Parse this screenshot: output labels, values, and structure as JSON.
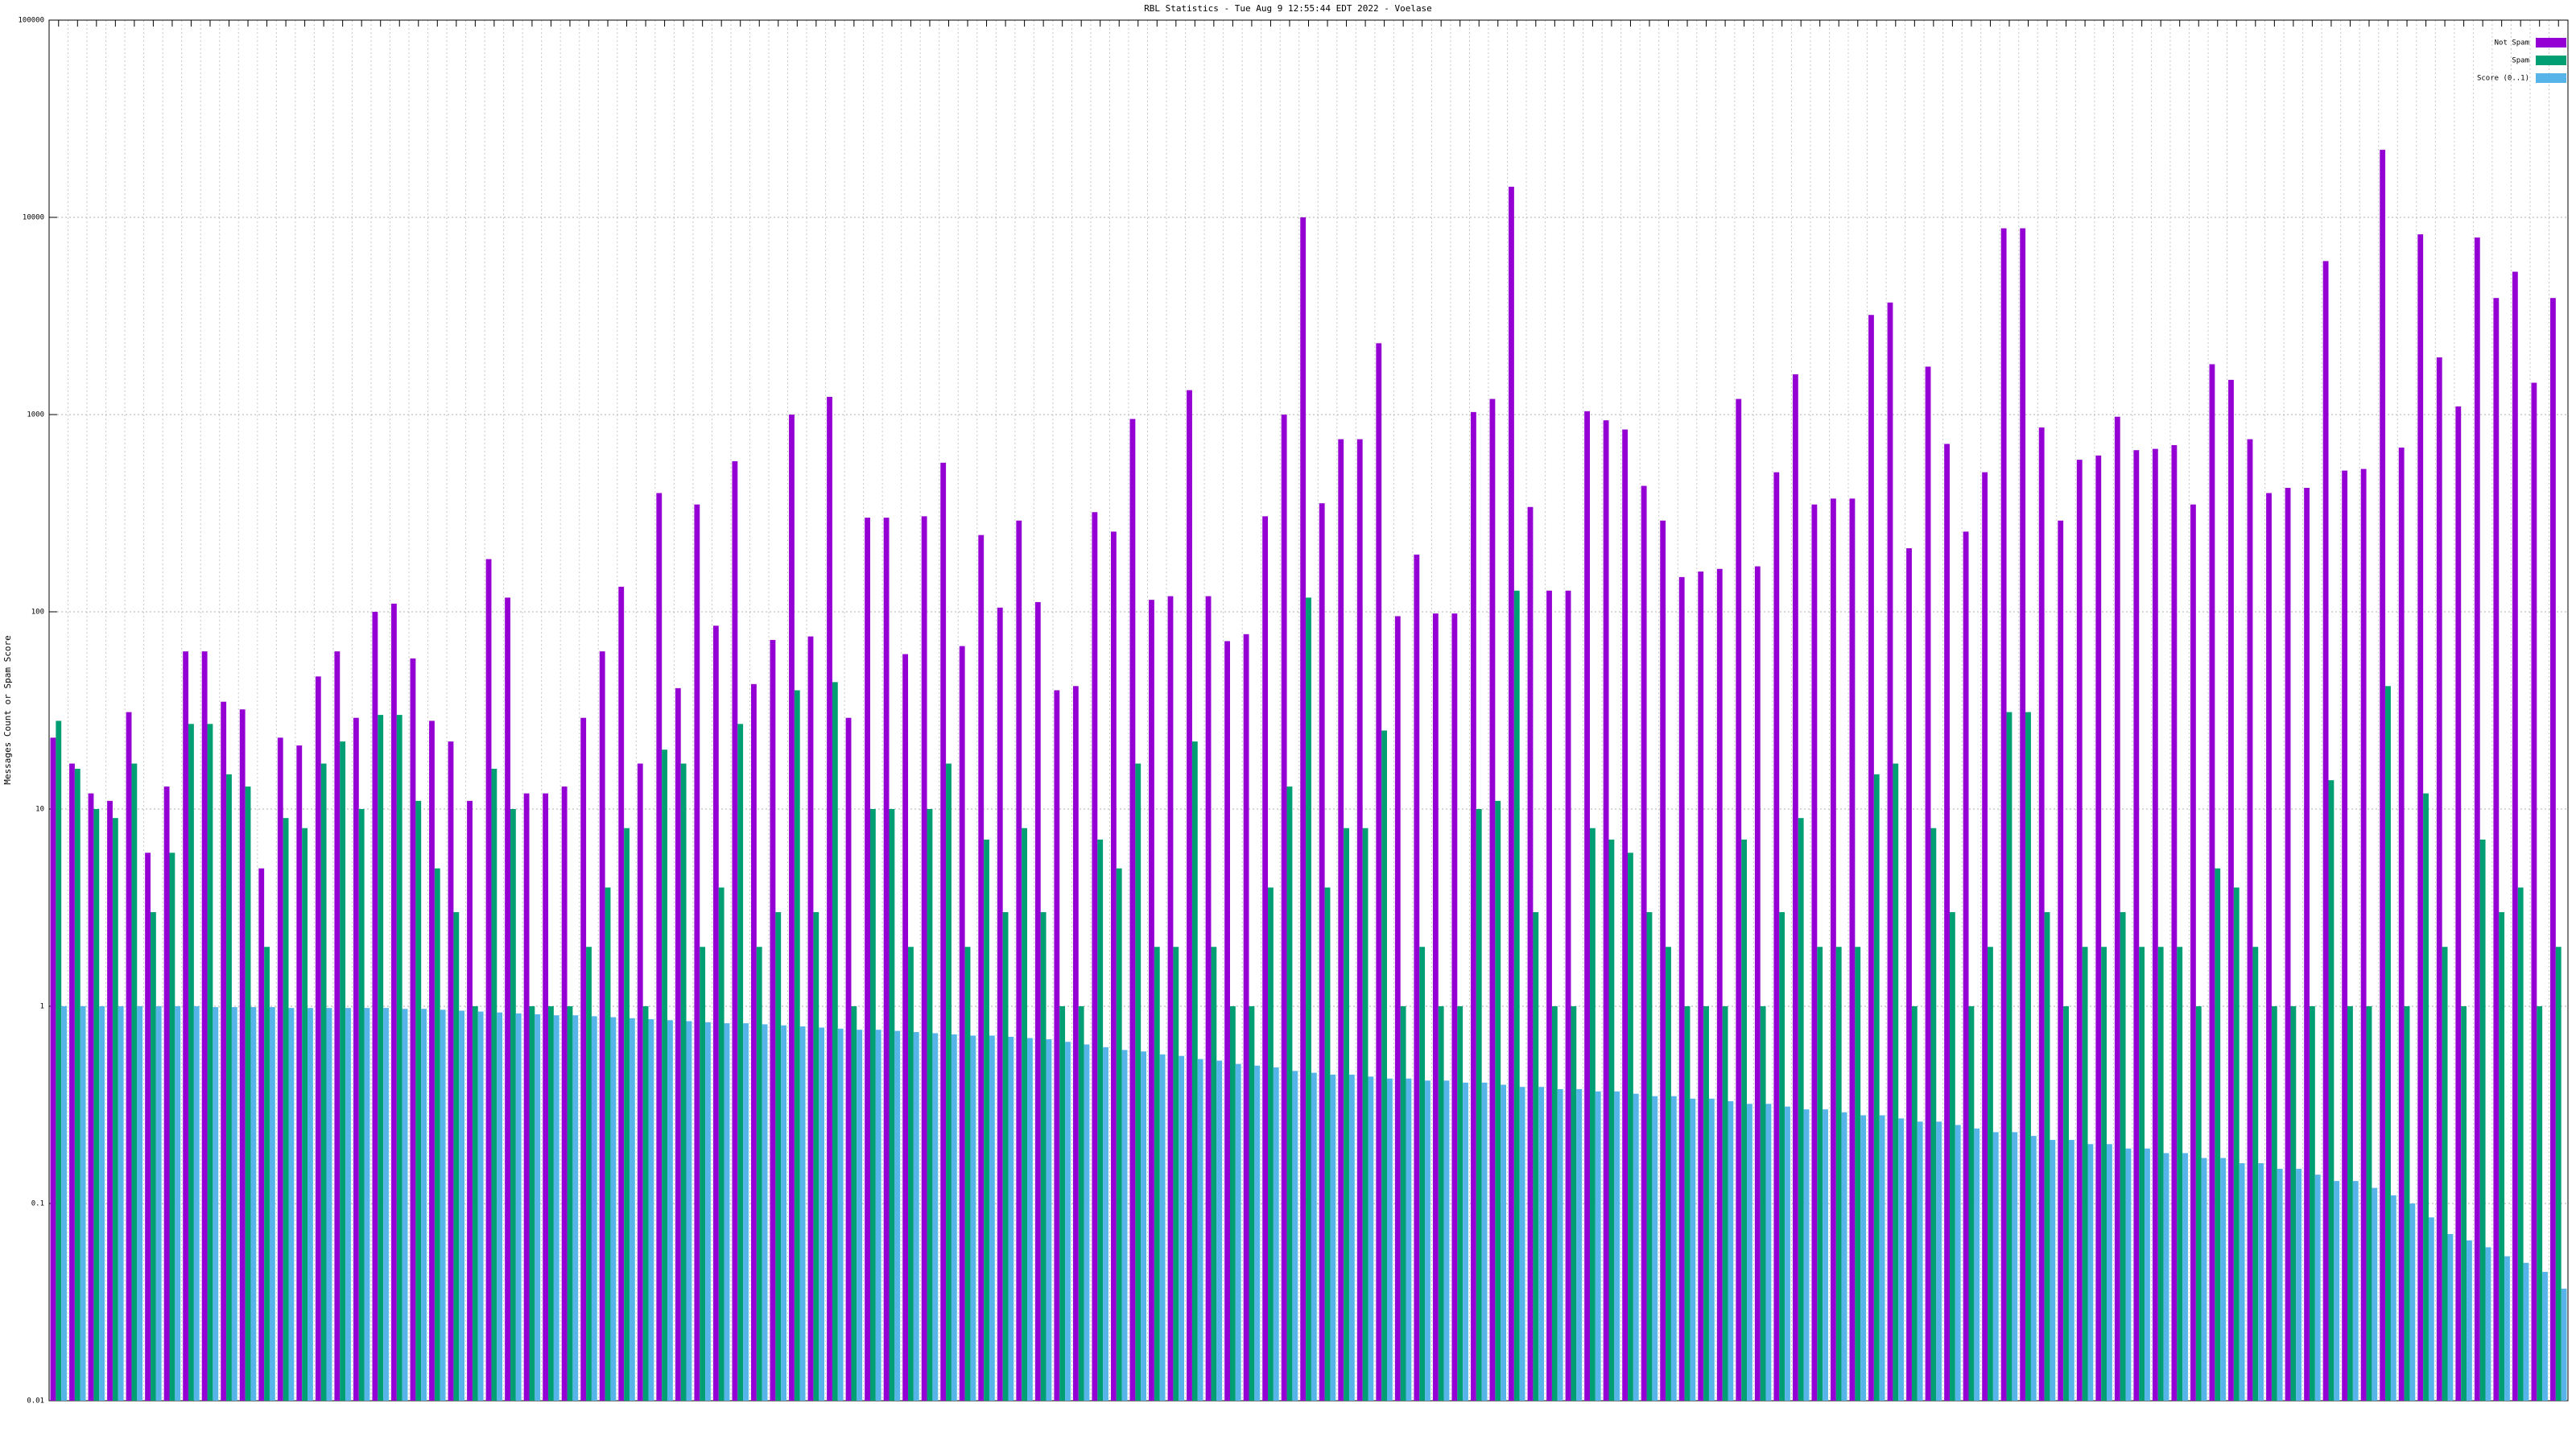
{
  "chart_data": {
    "type": "bar",
    "title": "RBL Statistics - Tue Aug  9 12:55:44 EDT 2022 - Voelase",
    "y_label": "Messages Count or Spam Score",
    "log_y": true,
    "grid": true,
    "legend": "top-right",
    "ylim": [
      0.01,
      100000
    ],
    "yticks": [
      0.01,
      0.1,
      1,
      10,
      100,
      1000,
      10000,
      100000
    ],
    "categories": [
      null,
      null,
      null,
      null,
      null,
      null,
      null,
      null,
      null,
      null,
      null,
      null,
      null,
      null,
      null,
      null,
      null,
      null,
      null,
      null,
      null,
      null,
      null,
      null,
      null,
      null,
      null,
      null,
      null,
      null,
      null,
      null,
      null,
      null,
      null,
      null,
      null,
      null,
      null,
      null,
      null,
      null,
      null,
      null,
      null,
      null,
      null,
      null,
      null,
      null,
      null,
      null,
      null,
      null,
      null,
      null,
      null,
      null,
      null,
      null,
      null,
      null,
      null,
      null,
      null,
      null,
      null,
      null,
      null,
      null,
      null,
      null,
      null,
      null,
      null,
      null,
      null,
      null,
      null,
      null,
      null,
      null,
      null,
      null,
      null,
      null,
      null,
      null,
      null,
      null,
      null,
      null,
      null,
      null,
      null,
      null,
      null,
      null,
      null,
      null,
      null,
      null,
      null,
      null,
      null,
      null,
      null,
      null,
      null,
      null,
      null,
      null,
      null,
      null,
      null,
      null,
      null,
      null,
      null,
      null,
      null,
      null,
      null,
      null,
      null,
      null,
      null,
      null,
      null,
      null,
      null,
      null,
      null
    ],
    "series": [
      {
        "name": "Not Spam",
        "color": "#9400d3",
        "values": [
          23,
          17,
          12,
          11,
          31,
          6,
          13,
          63,
          63,
          35,
          32,
          5,
          23,
          21,
          47,
          63,
          29,
          100,
          110,
          58,
          28,
          22,
          11,
          185,
          118,
          12,
          12,
          13,
          29,
          63,
          134,
          17,
          400,
          41,
          350,
          85,
          580,
          43,
          72,
          1000,
          75,
          1230,
          29,
          300,
          300,
          61,
          305,
          570,
          67,
          245,
          105,
          290,
          112,
          40,
          42,
          320,
          255,
          950,
          115,
          120,
          1330,
          120,
          71,
          77,
          305,
          1000,
          10000,
          355,
          750,
          750,
          2300,
          95,
          195,
          98,
          98,
          1030,
          1200,
          14300,
          340,
          128,
          128,
          1040,
          935,
          840,
          435,
          290,
          150,
          160,
          165,
          1200,
          170,
          510,
          1600,
          350,
          375,
          375,
          3200,
          3700,
          210,
          1750,
          710,
          255,
          510,
          8800,
          8800,
          860,
          290,
          590,
          620,
          975,
          660,
          670,
          700,
          350,
          1800,
          1500,
          750,
          400,
          425,
          425,
          6000,
          520,
          530,
          22000,
          680,
          8200,
          1950,
          1100,
          7900,
          3900,
          5300,
          1450,
          3900
        ]
      },
      {
        "name": "Spam",
        "color": "#009e73",
        "values": [
          28,
          16,
          10,
          9,
          17,
          3,
          6,
          27,
          27,
          15,
          13,
          2,
          9,
          8,
          17,
          22,
          10,
          30,
          30,
          11,
          5,
          3,
          1,
          16,
          10,
          1,
          1,
          1,
          2,
          4,
          8,
          1,
          20,
          17,
          2,
          4,
          27,
          2,
          3,
          40,
          3,
          44,
          1,
          10,
          10,
          2,
          10,
          17,
          2,
          7,
          3,
          8,
          3,
          1,
          1,
          7,
          5,
          17,
          2,
          2,
          22,
          2,
          1,
          1,
          4,
          13,
          118,
          4,
          8,
          8,
          25,
          1,
          2,
          1,
          1,
          10,
          11,
          128,
          3,
          1,
          1,
          8,
          7,
          6,
          3,
          2,
          1,
          1,
          1,
          7,
          1,
          3,
          9,
          2,
          2,
          2,
          15,
          17,
          1,
          8,
          3,
          1,
          2,
          31,
          31,
          3,
          1,
          2,
          2,
          3,
          2,
          2,
          2,
          1,
          5,
          4,
          2,
          1,
          1,
          1,
          14,
          1,
          1,
          42,
          1,
          12,
          2,
          1,
          7,
          3,
          4,
          1,
          2
        ]
      },
      {
        "name": "Score (0..1)",
        "color": "#56b4e9",
        "values": [
          1,
          1,
          1,
          1,
          1,
          1,
          1,
          1,
          0.99,
          0.99,
          0.99,
          0.99,
          0.98,
          0.98,
          0.98,
          0.98,
          0.98,
          0.98,
          0.97,
          0.97,
          0.96,
          0.95,
          0.94,
          0.93,
          0.92,
          0.91,
          0.9,
          0.9,
          0.89,
          0.88,
          0.87,
          0.86,
          0.85,
          0.84,
          0.83,
          0.82,
          0.82,
          0.81,
          0.8,
          0.79,
          0.78,
          0.77,
          0.76,
          0.76,
          0.75,
          0.74,
          0.73,
          0.72,
          0.71,
          0.71,
          0.7,
          0.69,
          0.68,
          0.66,
          0.64,
          0.62,
          0.6,
          0.59,
          0.57,
          0.56,
          0.54,
          0.53,
          0.51,
          0.5,
          0.49,
          0.47,
          0.46,
          0.45,
          0.45,
          0.44,
          0.43,
          0.43,
          0.42,
          0.42,
          0.41,
          0.41,
          0.4,
          0.39,
          0.39,
          0.38,
          0.38,
          0.37,
          0.37,
          0.36,
          0.35,
          0.35,
          0.34,
          0.34,
          0.33,
          0.32,
          0.32,
          0.31,
          0.3,
          0.3,
          0.29,
          0.28,
          0.28,
          0.27,
          0.26,
          0.26,
          0.25,
          0.24,
          0.23,
          0.23,
          0.22,
          0.21,
          0.21,
          0.2,
          0.2,
          0.19,
          0.19,
          0.18,
          0.18,
          0.17,
          0.17,
          0.16,
          0.16,
          0.15,
          0.15,
          0.14,
          0.13,
          0.13,
          0.12,
          0.11,
          0.1,
          0.085,
          0.07,
          0.065,
          0.06,
          0.054,
          0.05,
          0.045,
          0.037
        ]
      }
    ]
  }
}
